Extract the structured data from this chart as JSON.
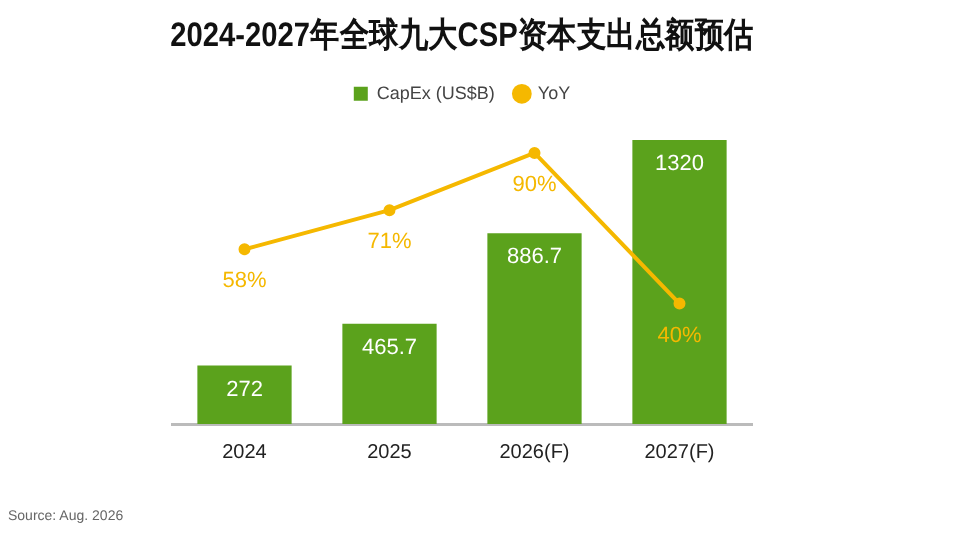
{
  "chart_data": {
    "type": "bar",
    "title": "2024-2027年全球九大CSP资本支出总额预估",
    "categories": [
      "2024",
      "2025",
      "2026(F)",
      "2027(F)"
    ],
    "series": [
      {
        "name": "CapEx (US$B)",
        "color": "#5ba21c",
        "values": [
          272,
          465.7,
          886.7,
          1320
        ],
        "value_labels": [
          "272",
          "465.7",
          "886.7",
          "1320"
        ]
      },
      {
        "name": "YoY",
        "type": "line",
        "axis": "y2",
        "color": "#f5b800",
        "values": [
          58,
          71,
          90,
          40
        ],
        "value_labels": [
          "58%",
          "71%",
          "90%",
          "40%"
        ]
      }
    ],
    "tick_labels": "x",
    "grid": false,
    "legend": "top",
    "marker": "circle",
    "annotations": [
      "Source: Aug. 2026"
    ]
  }
}
